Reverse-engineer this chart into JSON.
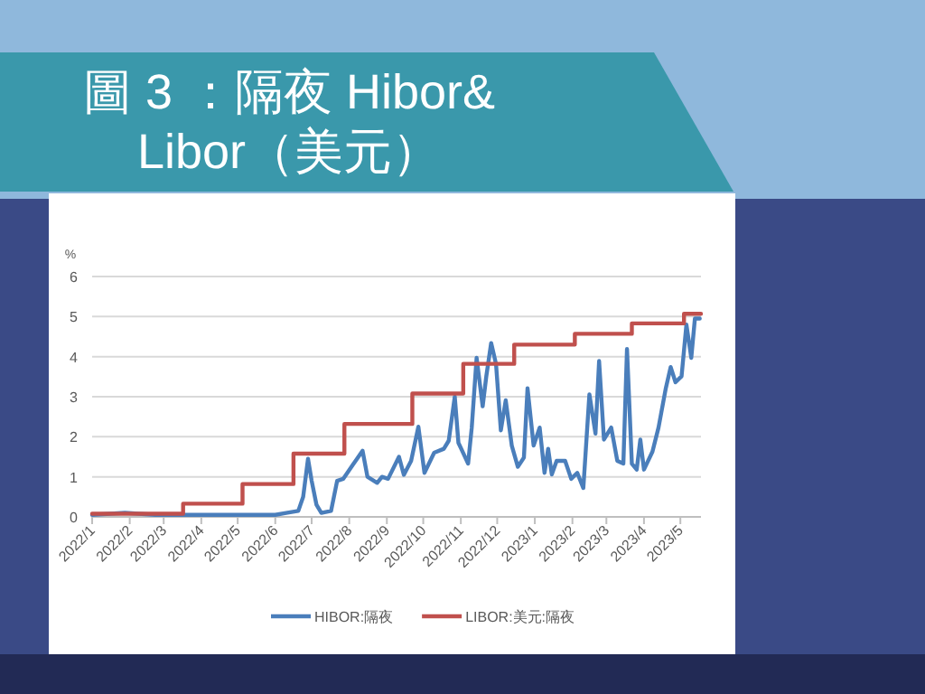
{
  "chart_data": {
    "type": "line",
    "title": "圖 3 ：隔夜 Hibor& Libor（美元）",
    "ylabel": "%",
    "xlim": [
      "2022-01-01",
      "2023-05-18"
    ],
    "ylim": [
      0,
      6
    ],
    "yticks": [
      0,
      1,
      2,
      3,
      4,
      5,
      6
    ],
    "xticks": [
      {
        "value": "2022-01-01",
        "label": "2022/1"
      },
      {
        "value": "2022-02-01",
        "label": "2022/2"
      },
      {
        "value": "2022-03-01",
        "label": "2022/3"
      },
      {
        "value": "2022-04-01",
        "label": "2022/4"
      },
      {
        "value": "2022-05-01",
        "label": "2022/5"
      },
      {
        "value": "2022-06-01",
        "label": "2022/6"
      },
      {
        "value": "2022-07-01",
        "label": "2022/7"
      },
      {
        "value": "2022-08-01",
        "label": "2022/8"
      },
      {
        "value": "2022-09-01",
        "label": "2022/9"
      },
      {
        "value": "2022-10-01",
        "label": "2022/10"
      },
      {
        "value": "2022-11-01",
        "label": "2022/11"
      },
      {
        "value": "2022-12-01",
        "label": "2022/12"
      },
      {
        "value": "2023-01-01",
        "label": "2023/1"
      },
      {
        "value": "2023-02-01",
        "label": "2023/2"
      },
      {
        "value": "2023-03-01",
        "label": "2023/3"
      },
      {
        "value": "2023-04-01",
        "label": "2023/4"
      },
      {
        "value": "2023-05-01",
        "label": "2023/5"
      }
    ],
    "grid": "y",
    "legend": "bottom",
    "series": [
      {
        "name": "HIBOR:隔夜",
        "color": "#4a7ebb",
        "x": [
          "2022-01-01",
          "2022-01-28",
          "2022-02-22",
          "2022-06-01",
          "2022-06-10",
          "2022-06-20",
          "2022-06-24",
          "2022-06-28",
          "2022-07-01",
          "2022-07-05",
          "2022-07-09",
          "2022-07-17",
          "2022-07-22",
          "2022-07-27",
          "2022-08-04",
          "2022-08-12",
          "2022-08-16",
          "2022-08-24",
          "2022-08-28",
          "2022-09-02",
          "2022-09-11",
          "2022-09-15",
          "2022-09-21",
          "2022-09-27",
          "2022-10-02",
          "2022-10-10",
          "2022-10-18",
          "2022-10-22",
          "2022-10-27",
          "2022-10-30",
          "2022-11-07",
          "2022-11-10",
          "2022-11-14",
          "2022-11-19",
          "2022-11-22",
          "2022-11-26",
          "2022-11-30",
          "2022-12-04",
          "2022-12-08",
          "2022-12-13",
          "2022-12-18",
          "2022-12-23",
          "2022-12-26",
          "2022-12-31",
          "2023-01-05",
          "2023-01-09",
          "2023-01-12",
          "2023-01-15",
          "2023-01-19",
          "2023-01-26",
          "2023-01-31",
          "2023-02-05",
          "2023-02-10",
          "2023-02-15",
          "2023-02-20",
          "2023-02-23",
          "2023-02-27",
          "2023-03-05",
          "2023-03-10",
          "2023-03-15",
          "2023-03-18",
          "2023-03-22",
          "2023-03-26",
          "2023-03-29",
          "2023-04-01",
          "2023-04-08",
          "2023-04-13",
          "2023-04-19",
          "2023-04-23",
          "2023-04-27",
          "2023-05-02",
          "2023-05-06",
          "2023-05-10",
          "2023-05-13",
          "2023-05-17"
        ],
        "values": [
          0.05,
          0.1,
          0.05,
          0.05,
          0.1,
          0.15,
          0.5,
          1.45,
          0.9,
          0.3,
          0.1,
          0.15,
          0.9,
          0.95,
          1.3,
          1.65,
          1.0,
          0.85,
          1.0,
          0.95,
          1.5,
          1.05,
          1.4,
          2.25,
          1.1,
          1.6,
          1.7,
          1.9,
          3.0,
          1.85,
          1.33,
          2.23,
          3.97,
          2.76,
          3.51,
          4.34,
          3.82,
          2.16,
          2.91,
          1.78,
          1.25,
          1.48,
          3.21,
          1.78,
          2.23,
          1.1,
          1.7,
          1.06,
          1.4,
          1.4,
          0.95,
          1.1,
          0.72,
          3.06,
          2.08,
          3.89,
          1.93,
          2.23,
          1.4,
          1.33,
          4.19,
          1.33,
          1.18,
          1.93,
          1.18,
          1.63,
          2.23,
          3.21,
          3.74,
          3.36,
          3.51,
          4.8,
          3.97,
          4.95,
          4.95
        ]
      },
      {
        "name": "LIBOR:美元:隔夜",
        "type": "step",
        "color": "#c0504d",
        "x": [
          "2022-01-01",
          "2022-03-17",
          "2022-05-05",
          "2022-06-16",
          "2022-07-28",
          "2022-09-22",
          "2022-11-03",
          "2022-12-15",
          "2023-02-03",
          "2023-03-22",
          "2023-05-04",
          "2023-05-18"
        ],
        "values": [
          0.08,
          0.33,
          0.82,
          1.58,
          2.32,
          3.08,
          3.82,
          4.3,
          4.57,
          4.83,
          5.07,
          5.07
        ]
      }
    ]
  }
}
